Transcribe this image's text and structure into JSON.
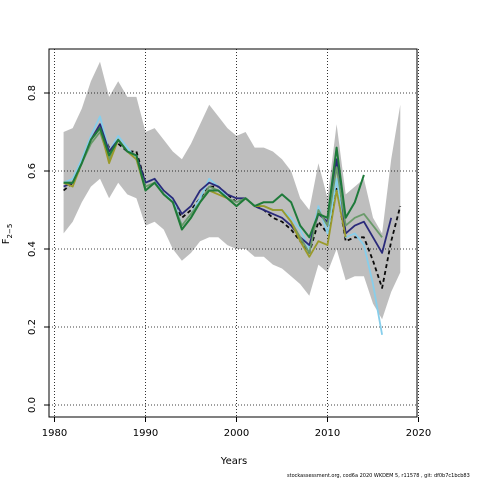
{
  "chart_data": {
    "type": "line",
    "title": "",
    "xlabel": "Years",
    "ylabel_main": "F",
    "ylabel_sub": "2−5",
    "xlim": [
      1980,
      2020
    ],
    "ylim": [
      0,
      0.85
    ],
    "xticks": [
      1980,
      1990,
      2000,
      2010,
      2020
    ],
    "yticks": [
      0.0,
      0.2,
      0.4,
      0.6,
      0.8
    ],
    "grid": true,
    "band_color": "#bebebe",
    "band": {
      "x": [
        1981,
        1982,
        1983,
        1984,
        1985,
        1986,
        1987,
        1988,
        1989,
        1990,
        1991,
        1992,
        1993,
        1994,
        1995,
        1996,
        1997,
        1998,
        1999,
        2000,
        2001,
        2002,
        2003,
        2004,
        2005,
        2006,
        2007,
        2008,
        2009,
        2010,
        2011,
        2012,
        2013,
        2014,
        2015,
        2016,
        2017,
        2018
      ],
      "upper": [
        0.7,
        0.71,
        0.76,
        0.83,
        0.88,
        0.79,
        0.83,
        0.79,
        0.79,
        0.7,
        0.71,
        0.68,
        0.65,
        0.63,
        0.67,
        0.72,
        0.77,
        0.74,
        0.71,
        0.69,
        0.7,
        0.66,
        0.66,
        0.65,
        0.63,
        0.6,
        0.53,
        0.5,
        0.62,
        0.53,
        0.72,
        0.54,
        0.56,
        0.58,
        0.48,
        0.44,
        0.63,
        0.77
      ],
      "lower": [
        0.44,
        0.47,
        0.52,
        0.56,
        0.58,
        0.53,
        0.57,
        0.54,
        0.53,
        0.46,
        0.47,
        0.45,
        0.4,
        0.37,
        0.39,
        0.42,
        0.43,
        0.43,
        0.41,
        0.4,
        0.4,
        0.38,
        0.38,
        0.36,
        0.35,
        0.33,
        0.31,
        0.28,
        0.36,
        0.34,
        0.4,
        0.32,
        0.33,
        0.33,
        0.26,
        0.22,
        0.29,
        0.34
      ]
    },
    "series": [
      {
        "color": "#0a0a0a",
        "dash": "4,3",
        "width": 1.8,
        "x": [
          1981,
          1982,
          1983,
          1984,
          1985,
          1986,
          1987,
          1988,
          1989,
          1990,
          1991,
          1992,
          1993,
          1994,
          1995,
          1996,
          1997,
          1998,
          1999,
          2000,
          2001,
          2002,
          2003,
          2004,
          2005,
          2006,
          2007,
          2008,
          2009,
          2010,
          2011,
          2012,
          2013,
          2014,
          2015,
          2016,
          2017,
          2018
        ],
        "values": [
          0.55,
          0.57,
          0.62,
          0.68,
          0.71,
          0.66,
          0.67,
          0.65,
          0.65,
          0.57,
          0.58,
          0.54,
          0.52,
          0.48,
          0.5,
          0.53,
          0.56,
          0.56,
          0.54,
          0.52,
          0.53,
          0.51,
          0.5,
          0.48,
          0.47,
          0.45,
          0.42,
          0.39,
          0.47,
          0.44,
          0.56,
          0.42,
          0.43,
          0.43,
          0.37,
          0.3,
          0.42,
          0.51
        ]
      },
      {
        "color": "#87ceeb",
        "dash": "",
        "width": 1.8,
        "x": [
          1981,
          1982,
          1983,
          1984,
          1985,
          1986,
          1987,
          1988,
          1989,
          1990,
          1991,
          1992,
          1993,
          1994,
          1995,
          1996,
          1997,
          1998,
          1999,
          2000,
          2001,
          2002,
          2003,
          2004,
          2005,
          2006,
          2007,
          2008,
          2009,
          2010,
          2011,
          2012,
          2013,
          2014,
          2015,
          2016
        ],
        "values": [
          0.57,
          0.58,
          0.63,
          0.69,
          0.74,
          0.65,
          0.69,
          0.66,
          0.63,
          0.57,
          0.58,
          0.54,
          0.53,
          0.46,
          0.49,
          0.53,
          0.58,
          0.56,
          0.53,
          0.52,
          0.53,
          0.51,
          0.51,
          0.5,
          0.5,
          0.48,
          0.45,
          0.4,
          0.51,
          0.44,
          0.58,
          0.43,
          0.44,
          0.41,
          0.31,
          0.18
        ]
      },
      {
        "color": "#2a2a7a",
        "dash": "",
        "width": 1.8,
        "x": [
          1981,
          1982,
          1983,
          1984,
          1985,
          1986,
          1987,
          1988,
          1989,
          1990,
          1991,
          1992,
          1993,
          1994,
          1995,
          1996,
          1997,
          1998,
          1999,
          2000,
          2001,
          2002,
          2003,
          2004,
          2005,
          2006,
          2007,
          2008,
          2009,
          2010,
          2011,
          2012,
          2013,
          2014,
          2015,
          2016,
          2017
        ],
        "values": [
          0.56,
          0.57,
          0.62,
          0.68,
          0.72,
          0.65,
          0.68,
          0.65,
          0.64,
          0.57,
          0.58,
          0.55,
          0.53,
          0.49,
          0.51,
          0.55,
          0.57,
          0.56,
          0.54,
          0.53,
          0.53,
          0.51,
          0.5,
          0.49,
          0.48,
          0.46,
          0.43,
          0.41,
          0.49,
          0.47,
          0.63,
          0.44,
          0.46,
          0.47,
          0.43,
          0.39,
          0.48
        ]
      },
      {
        "color": "#6a9a6a",
        "dash": "",
        "width": 1.8,
        "x": [
          1981,
          1982,
          1983,
          1984,
          1985,
          1986,
          1987,
          1988,
          1989,
          1990,
          1991,
          1992,
          1993,
          1994,
          1995,
          1996,
          1997,
          1998,
          1999,
          2000,
          2001,
          2002,
          2003,
          2004,
          2005,
          2006,
          2007,
          2008,
          2009,
          2010,
          2011,
          2012,
          2013,
          2014,
          2015,
          2016
        ],
        "values": [
          0.57,
          0.57,
          0.62,
          0.67,
          0.7,
          0.63,
          0.68,
          0.65,
          0.63,
          0.56,
          0.57,
          0.54,
          0.52,
          0.46,
          0.49,
          0.52,
          0.56,
          0.55,
          0.53,
          0.52,
          0.53,
          0.51,
          0.51,
          0.5,
          0.5,
          0.47,
          0.43,
          0.39,
          0.5,
          0.46,
          0.61,
          0.46,
          0.48,
          0.49,
          0.46,
          0.43
        ]
      },
      {
        "color": "#9a9a2a",
        "dash": "",
        "width": 1.8,
        "x": [
          1981,
          1982,
          1983,
          1984,
          1985,
          1986,
          1987,
          1988,
          1989,
          1990,
          1991,
          1992,
          1993,
          1994,
          1995,
          1996,
          1997,
          1998,
          1999,
          2000,
          2001,
          2002,
          2003,
          2004,
          2005,
          2006,
          2007,
          2008,
          2009,
          2010,
          2011,
          2012
        ],
        "values": [
          0.57,
          0.56,
          0.62,
          0.68,
          0.71,
          0.62,
          0.68,
          0.65,
          0.63,
          0.55,
          0.57,
          0.54,
          0.52,
          0.45,
          0.48,
          0.52,
          0.55,
          0.54,
          0.53,
          0.51,
          0.53,
          0.51,
          0.51,
          0.5,
          0.5,
          0.47,
          0.42,
          0.38,
          0.42,
          0.41,
          0.55,
          0.43
        ]
      },
      {
        "color": "#1e7a3a",
        "dash": "",
        "width": 2.0,
        "x": [
          1981,
          1982,
          1983,
          1984,
          1985,
          1986,
          1987,
          1988,
          1989,
          1990,
          1991,
          1992,
          1993,
          1994,
          1995,
          1996,
          1997,
          1998,
          1999,
          2000,
          2001,
          2002,
          2003,
          2004,
          2005,
          2006,
          2007,
          2008,
          2009,
          2010,
          2011,
          2012,
          2013,
          2014
        ],
        "values": [
          0.57,
          0.57,
          0.62,
          0.68,
          0.71,
          0.64,
          0.68,
          0.65,
          0.64,
          0.55,
          0.57,
          0.54,
          0.52,
          0.45,
          0.48,
          0.52,
          0.55,
          0.55,
          0.53,
          0.51,
          0.53,
          0.51,
          0.52,
          0.52,
          0.54,
          0.52,
          0.46,
          0.43,
          0.49,
          0.48,
          0.66,
          0.48,
          0.52,
          0.59
        ]
      }
    ],
    "footer": "stockassessment.org,  cod6a  2020  WKDEM  5,  r11578  ,  git:  df0b7c1bcb83"
  }
}
